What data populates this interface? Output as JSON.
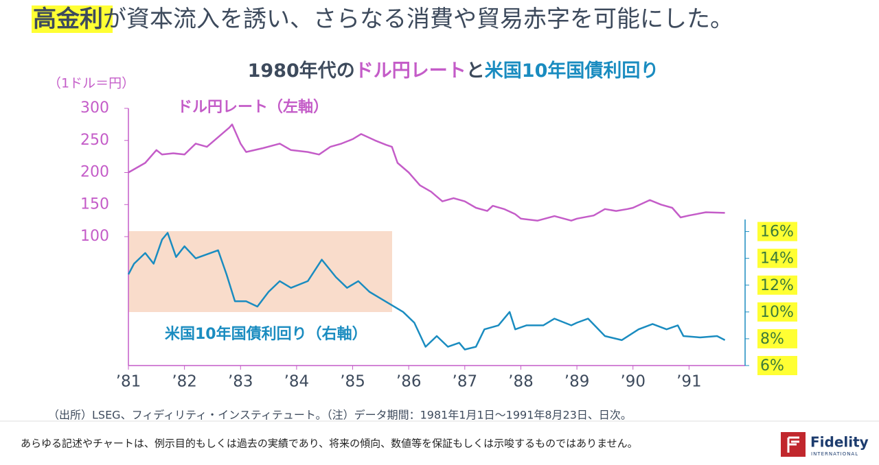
{
  "slide_title": {
    "highlight": "高金利",
    "rest": "が資本流入を誘い、さらなる消費や貿易赤字を可能にした。"
  },
  "chart_data": {
    "type": "line",
    "title": [
      {
        "text": "1980年代の",
        "color": "#3d4a5c"
      },
      {
        "text": "ドル円レート",
        "color": "#c45cc8"
      },
      {
        "text": "と",
        "color": "#3d4a5c"
      },
      {
        "text": "米国10年国債利回り",
        "color": "#1a8cc0"
      }
    ],
    "y_label": "（1ドル＝円）",
    "xlim": [
      1981,
      1992
    ],
    "xticks": [
      {
        "value": 1981,
        "label": "’81"
      },
      {
        "value": 1982,
        "label": "’82"
      },
      {
        "value": 1983,
        "label": "’83"
      },
      {
        "value": 1984,
        "label": "’84"
      },
      {
        "value": 1985,
        "label": "’85"
      },
      {
        "value": 1986,
        "label": "’86"
      },
      {
        "value": 1987,
        "label": "’87"
      },
      {
        "value": 1988,
        "label": "’88"
      },
      {
        "value": 1989,
        "label": "’89"
      },
      {
        "value": 1990,
        "label": "’90"
      },
      {
        "value": 1991,
        "label": "’91"
      }
    ],
    "ylim": [
      -101,
      300
    ],
    "yticks": [
      100,
      150,
      200,
      250,
      300
    ],
    "y2lim": [
      6,
      16.9
    ],
    "y2ticks": [
      {
        "value": 6,
        "label": "6%"
      },
      {
        "value": 8,
        "label": "8%"
      },
      {
        "value": 10,
        "label": "10%"
      },
      {
        "value": 12,
        "label": "12%"
      },
      {
        "value": 14,
        "label": "14%"
      },
      {
        "value": 16,
        "label": "16%"
      }
    ],
    "series": [
      {
        "name": "ドル円レート（左軸）",
        "color": "#c45cc8",
        "axis": "y",
        "x": [
          1981.0,
          1981.3,
          1981.5,
          1981.6,
          1981.8,
          1982.0,
          1982.2,
          1982.4,
          1982.6,
          1982.8,
          1982.85,
          1983.0,
          1983.1,
          1983.4,
          1983.7,
          1983.9,
          1984.2,
          1984.4,
          1984.6,
          1984.8,
          1985.0,
          1985.15,
          1985.4,
          1985.6,
          1985.7,
          1985.8,
          1986.0,
          1986.2,
          1986.4,
          1986.6,
          1986.8,
          1987.0,
          1987.2,
          1987.4,
          1987.5,
          1987.7,
          1987.9,
          1988.0,
          1988.3,
          1988.6,
          1988.9,
          1989.0,
          1989.3,
          1989.5,
          1989.7,
          1989.9,
          1990.0,
          1990.3,
          1990.5,
          1990.7,
          1990.85,
          1991.0,
          1991.3,
          1991.64
        ],
        "values": [
          200,
          215,
          235,
          228,
          230,
          228,
          245,
          240,
          255,
          270,
          275,
          245,
          232,
          238,
          245,
          235,
          232,
          228,
          240,
          245,
          252,
          260,
          250,
          243,
          240,
          215,
          200,
          180,
          170,
          155,
          160,
          155,
          145,
          140,
          148,
          143,
          135,
          128,
          125,
          132,
          125,
          128,
          133,
          143,
          140,
          143,
          145,
          157,
          150,
          145,
          130,
          133,
          138,
          137
        ]
      },
      {
        "name": "米国10年国債利回り（右軸）",
        "color": "#1a8cc0",
        "axis": "y2",
        "x": [
          1981.0,
          1981.1,
          1981.3,
          1981.45,
          1981.6,
          1981.7,
          1981.85,
          1982.0,
          1982.2,
          1982.4,
          1982.6,
          1982.75,
          1982.9,
          1983.1,
          1983.3,
          1983.5,
          1983.7,
          1983.9,
          1984.2,
          1984.45,
          1984.7,
          1984.9,
          1985.1,
          1985.3,
          1985.5,
          1985.7,
          1985.9,
          1986.1,
          1986.3,
          1986.5,
          1986.7,
          1986.9,
          1987.0,
          1987.2,
          1987.35,
          1987.6,
          1987.8,
          1987.9,
          1988.1,
          1988.4,
          1988.6,
          1988.9,
          1989.0,
          1989.2,
          1989.5,
          1989.8,
          1990.1,
          1990.35,
          1990.6,
          1990.8,
          1990.9,
          1991.2,
          1991.5,
          1991.64
        ],
        "values": [
          12.8,
          13.6,
          14.4,
          13.6,
          15.4,
          15.9,
          14.1,
          14.9,
          14.0,
          14.3,
          14.6,
          12.8,
          10.8,
          10.8,
          10.4,
          11.5,
          12.3,
          11.8,
          12.3,
          13.9,
          12.6,
          11.8,
          12.3,
          11.5,
          11.0,
          10.5,
          10.0,
          9.2,
          7.4,
          8.2,
          7.4,
          7.7,
          7.2,
          7.4,
          8.7,
          9.0,
          10.0,
          8.7,
          9.0,
          9.0,
          9.5,
          9.0,
          9.2,
          9.5,
          8.2,
          7.9,
          8.7,
          9.1,
          8.7,
          9.0,
          8.2,
          8.1,
          8.2,
          7.9
        ]
      }
    ]
  },
  "source": "（出所）LSEG、フィディリティ・インスティテュート。（注）データ期間：1981年1月1日～1991年8月23日、日次。",
  "footer": {
    "disclaimer": "あらゆる記述やチャートは、例示目的もしくは過去の実績であり、将来の傾向、数値等を保証もしくは示唆するものではありません。",
    "logo": "Fidelity",
    "logo_sub": "INTERNATIONAL"
  }
}
